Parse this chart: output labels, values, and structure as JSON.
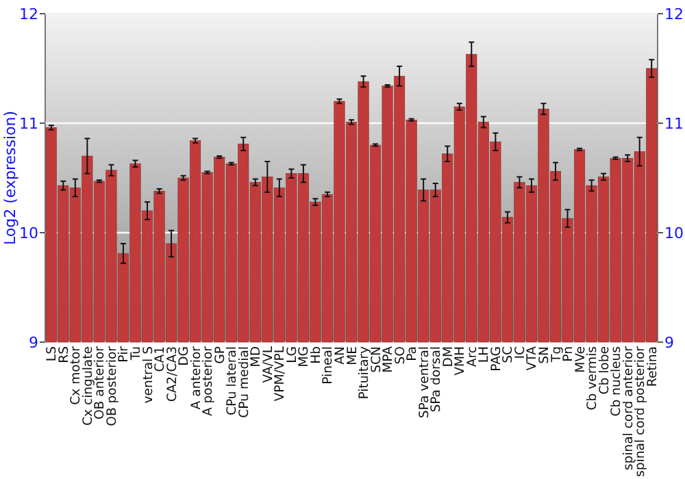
{
  "chart_data": {
    "type": "bar",
    "ylabel": "Log2 (expression)",
    "categories": [
      "LS",
      "RS",
      "Cx motor",
      "Cx cingulate",
      "OB anterior",
      "OB posterior",
      "Pir",
      "Tu",
      "ventral S",
      "CA1",
      "CA2/CA3",
      "DG",
      "A anterior",
      "A posterior",
      "GP",
      "CPu lateral",
      "CPu medial",
      "MD",
      "VA/VL",
      "VPM/VPL",
      "LG",
      "MG",
      "Hb",
      "Pineal",
      "AN",
      "ME",
      "Pituitary",
      "SCN",
      "MPA",
      "SO",
      "Pa",
      "SPa ventral",
      "SPa dorsal",
      "DM",
      "VMH",
      "Arc",
      "LH",
      "PAG",
      "SC",
      "IC",
      "VTA",
      "SN",
      "Tg",
      "Pn",
      "MVe",
      "Cb vermis",
      "Cb lobe",
      "Cb nucleus",
      "spinal cord anterior",
      "spinal cord posterior",
      "Retina"
    ],
    "values": [
      10.96,
      10.43,
      10.41,
      10.7,
      10.47,
      10.57,
      9.81,
      10.63,
      10.2,
      10.38,
      9.9,
      10.5,
      10.84,
      10.55,
      10.69,
      10.63,
      10.81,
      10.46,
      10.51,
      10.41,
      10.54,
      10.54,
      10.28,
      10.35,
      11.2,
      11.01,
      11.38,
      10.8,
      11.34,
      11.43,
      11.03,
      10.39,
      10.39,
      10.72,
      11.15,
      11.63,
      11.01,
      10.83,
      10.14,
      10.46,
      10.43,
      11.13,
      10.56,
      10.13,
      10.76,
      10.43,
      10.51,
      10.68,
      10.68,
      10.74,
      11.5
    ],
    "errors": [
      0.02,
      0.04,
      0.08,
      0.16,
      0.01,
      0.05,
      0.09,
      0.03,
      0.08,
      0.02,
      0.12,
      0.02,
      0.02,
      0.01,
      0.01,
      0.01,
      0.06,
      0.03,
      0.14,
      0.08,
      0.04,
      0.08,
      0.03,
      0.02,
      0.02,
      0.02,
      0.05,
      0.01,
      0.01,
      0.09,
      0.01,
      0.1,
      0.06,
      0.07,
      0.03,
      0.11,
      0.05,
      0.08,
      0.05,
      0.05,
      0.06,
      0.05,
      0.08,
      0.08,
      0.01,
      0.05,
      0.03,
      0.01,
      0.03,
      0.13,
      0.08
    ],
    "color": "#c23b3b",
    "ylim": [
      9,
      12
    ],
    "yticks": [
      9,
      10,
      11,
      12
    ],
    "y2lim": [
      9,
      12
    ],
    "y2ticks": [
      9,
      10,
      11,
      12
    ],
    "grid": "y"
  }
}
